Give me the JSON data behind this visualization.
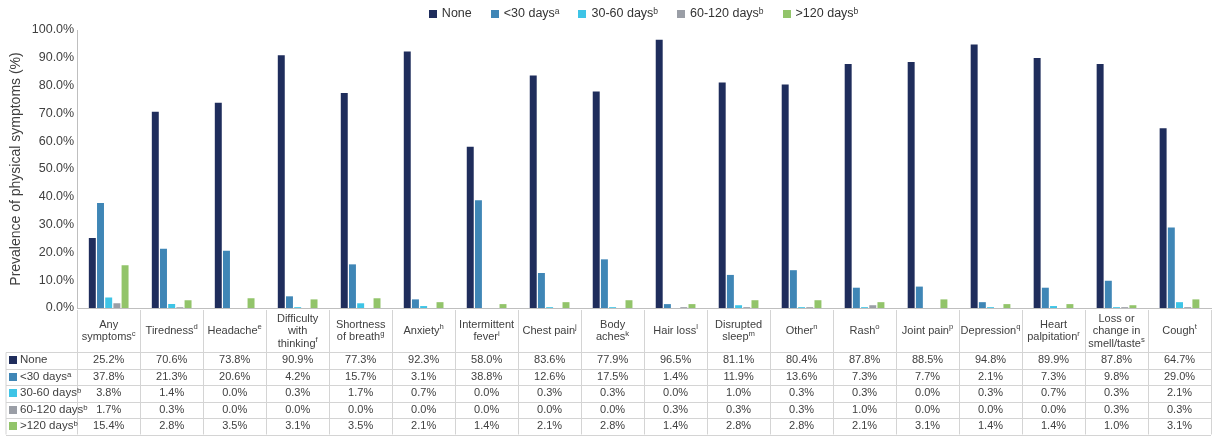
{
  "chart_data": {
    "type": "bar",
    "ylabel": "Prevalence of physical symptoms (%)",
    "categories": [
      "Any symptoms$^{c}$",
      "Tiredness$^{d}$",
      "Headache$^{e}$",
      "Difficulty with thinking$^{f}$",
      "Shortness of breath$^{g}$",
      "Anxiety$^{h}$",
      "Intermittent fever$^{i}$",
      "Chest pain$^{j}$",
      "Body aches$^{k}$",
      "Hair loss$^{l}$",
      "Disrupted sleep$^{m}$",
      "Other$^{n}$",
      "Rash$^{o}$",
      "Joint pain$^{p}$",
      "Depression$^{q}$",
      "Heart palpitation$^{r}$",
      "Loss or change in smell/taste$^{s}$",
      "Cough$^{t}$"
    ],
    "series": [
      {
        "name": "None",
        "color": "#1f2d5c",
        "values": [
          25.2,
          70.6,
          73.8,
          90.9,
          77.3,
          92.3,
          58.0,
          83.6,
          77.9,
          96.5,
          81.1,
          80.4,
          87.8,
          88.5,
          94.8,
          89.9,
          87.8,
          64.7
        ],
        "value_labels": [
          "25.2%",
          "70.6%",
          "73.8%",
          "90.9%",
          "77.3%",
          "92.3%",
          "58.0%",
          "83.6%",
          "77.9%",
          "96.5%",
          "81.1%",
          "80.4%",
          "87.8%",
          "88.5%",
          "94.8%",
          "89.9%",
          "87.8%",
          "64.7%"
        ]
      },
      {
        "name": "<30 daysᵃ",
        "color": "#3f86b6",
        "values": [
          37.8,
          21.3,
          20.6,
          4.2,
          15.7,
          3.1,
          38.8,
          12.6,
          17.5,
          1.4,
          11.9,
          13.6,
          7.3,
          7.7,
          2.1,
          7.3,
          9.8,
          29.0
        ],
        "value_labels": [
          "37.8%",
          "21.3%",
          "20.6%",
          "4.2%",
          "15.7%",
          "3.1%",
          "38.8%",
          "12.6%",
          "17.5%",
          "1.4%",
          "11.9%",
          "13.6%",
          "7.3%",
          "7.7%",
          "2.1%",
          "7.3%",
          "9.8%",
          "29.0%"
        ]
      },
      {
        "name": "30-60 daysᵇ",
        "color": "#3ec4e6",
        "values": [
          3.8,
          1.4,
          0.0,
          0.3,
          1.7,
          0.7,
          0.0,
          0.3,
          0.3,
          0.0,
          1.0,
          0.3,
          0.3,
          0.0,
          0.3,
          0.7,
          0.3,
          2.1
        ],
        "value_labels": [
          "3.8%",
          "1.4%",
          "0.0%",
          "0.3%",
          "1.7%",
          "0.7%",
          "0.0%",
          "0.3%",
          "0.3%",
          "0.0%",
          "1.0%",
          "0.3%",
          "0.3%",
          "0.0%",
          "0.3%",
          "0.7%",
          "0.3%",
          "2.1%"
        ]
      },
      {
        "name": "60-120 daysᵇ",
        "color": "#9a9ea6",
        "values": [
          1.7,
          0.3,
          0.0,
          0.0,
          0.0,
          0.0,
          0.0,
          0.0,
          0.0,
          0.3,
          0.3,
          0.3,
          1.0,
          0.0,
          0.0,
          0.0,
          0.3,
          0.3
        ],
        "value_labels": [
          "1.7%",
          "0.3%",
          "0.0%",
          "0.0%",
          "0.0%",
          "0.0%",
          "0.0%",
          "0.0%",
          "0.0%",
          "0.3%",
          "0.3%",
          "0.3%",
          "1.0%",
          "0.0%",
          "0.0%",
          "0.0%",
          "0.3%",
          "0.3%"
        ]
      },
      {
        "name": ">120 daysᵇ",
        "color": "#92c46a",
        "values": [
          15.4,
          2.8,
          3.5,
          3.1,
          3.5,
          2.1,
          1.4,
          2.1,
          2.8,
          1.4,
          2.8,
          2.8,
          2.1,
          3.1,
          1.4,
          1.4,
          1.0,
          3.1
        ],
        "value_labels": [
          "15.4%",
          "2.8%",
          "3.5%",
          "3.1%",
          "3.5%",
          "2.1%",
          "1.4%",
          "2.1%",
          "2.8%",
          "1.4%",
          "2.8%",
          "2.8%",
          "2.1%",
          "3.1%",
          "1.4%",
          "1.4%",
          "1.0%",
          "3.1%"
        ]
      }
    ],
    "ylim": [
      0,
      100
    ],
    "yticks": [
      {
        "value": 0,
        "label": "0.0%"
      },
      {
        "value": 10,
        "label": "10.0%"
      },
      {
        "value": 20,
        "label": "20.0%"
      },
      {
        "value": 30,
        "label": "30.0%"
      },
      {
        "value": 40,
        "label": "40.0%"
      },
      {
        "value": 50,
        "label": "50.0%"
      },
      {
        "value": 60,
        "label": "60.0%"
      },
      {
        "value": 70,
        "label": "70.0%"
      },
      {
        "value": 80,
        "label": "80.0%"
      },
      {
        "value": 90,
        "label": "90.0%"
      },
      {
        "value": 100,
        "label": "100.0%"
      }
    ],
    "grid": false,
    "legend": "bottom left"
  }
}
